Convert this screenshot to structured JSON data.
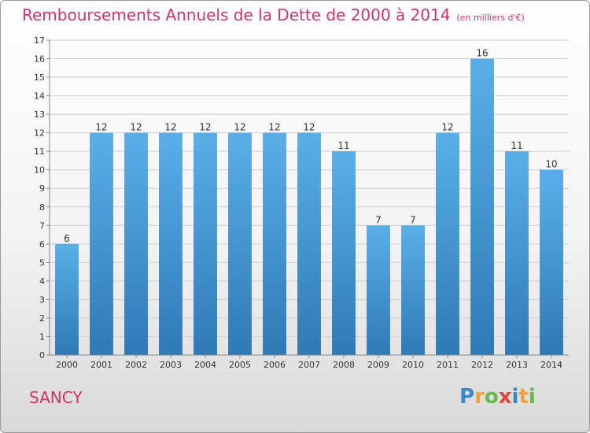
{
  "title": "Remboursements Annuels de la Dette de 2000 à 2014",
  "subtitle": "(en milliers d'€)",
  "commune": "SANCY",
  "logo": {
    "text": "Proxiti",
    "letters": [
      {
        "ch": "P",
        "color": "#3a86c8"
      },
      {
        "ch": "r",
        "color": "#f2a13a"
      },
      {
        "ch": "o",
        "color": "#67b847"
      },
      {
        "ch": "x",
        "color": "#e2453c"
      },
      {
        "ch": "i",
        "color": "#3a86c8"
      },
      {
        "ch": "t",
        "color": "#f2a13a"
      },
      {
        "ch": "i",
        "color": "#67b847"
      }
    ]
  },
  "colors": {
    "accent": "#d2326a",
    "bar_top": "#5aafe9",
    "bar_bottom": "#2e7ab8",
    "grid": "#d0d0d0",
    "axis_text": "#333333"
  },
  "chart_data": {
    "type": "bar",
    "title": "Remboursements Annuels de la Dette de 2000 à 2014",
    "subtitle": "(en milliers d'€)",
    "categories": [
      "2000",
      "2001",
      "2002",
      "2003",
      "2004",
      "2005",
      "2006",
      "2007",
      "2008",
      "2009",
      "2010",
      "2011",
      "2012",
      "2013",
      "2014"
    ],
    "values": [
      6,
      12,
      12,
      12,
      12,
      12,
      12,
      12,
      11,
      7,
      7,
      12,
      16,
      11,
      10
    ],
    "ylim": [
      0,
      17
    ],
    "yticks": [
      0,
      1,
      2,
      3,
      4,
      5,
      6,
      7,
      8,
      9,
      10,
      11,
      12,
      13,
      14,
      15,
      16,
      17
    ],
    "xlabel": "",
    "ylabel": "",
    "grid": true,
    "data_labels": true
  }
}
